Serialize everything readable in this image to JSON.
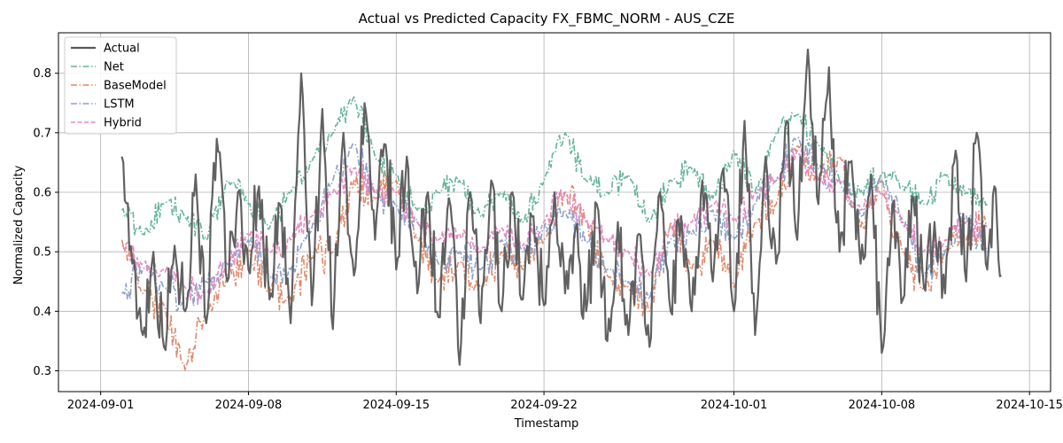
{
  "chart_data": {
    "type": "line",
    "title": "Actual vs Predicted Capacity FX_FBMC_NORM - AUS_CZE",
    "xlabel": "Timestamp",
    "ylabel": "Normalized Capacity",
    "xlim": [
      "2024-08-30",
      "2024-10-16"
    ],
    "ylim": [
      0.265,
      0.868
    ],
    "x_ticks": [
      "2024-09-01",
      "2024-09-08",
      "2024-09-15",
      "2024-09-22",
      "2024-10-01",
      "2024-10-08",
      "2024-10-15"
    ],
    "y_ticks": [
      0.3,
      0.4,
      0.5,
      0.6,
      0.7,
      0.8
    ],
    "grid": true,
    "legend_position": "top-left",
    "x_start": "2024-09-02",
    "x_end": "2024-10-13",
    "series": [
      {
        "name": "Actual",
        "color": "#595959",
        "style": "solid",
        "points": [
          [
            "2024-09-02",
            0.66
          ],
          [
            "2024-09-02",
            0.48
          ],
          [
            "2024-09-03",
            0.36
          ],
          [
            "2024-09-03",
            0.5
          ],
          [
            "2024-09-04",
            0.34
          ],
          [
            "2024-09-04",
            0.51
          ],
          [
            "2024-09-05",
            0.4
          ],
          [
            "2024-09-05",
            0.63
          ],
          [
            "2024-09-06",
            0.38
          ],
          [
            "2024-09-06",
            0.69
          ],
          [
            "2024-09-07",
            0.45
          ],
          [
            "2024-09-07",
            0.6
          ],
          [
            "2024-09-08",
            0.47
          ],
          [
            "2024-09-08",
            0.61
          ],
          [
            "2024-09-09",
            0.42
          ],
          [
            "2024-09-09",
            0.58
          ],
          [
            "2024-09-10",
            0.38
          ],
          [
            "2024-09-10",
            0.8
          ],
          [
            "2024-09-11",
            0.41
          ],
          [
            "2024-09-11",
            0.74
          ],
          [
            "2024-09-12",
            0.37
          ],
          [
            "2024-09-12",
            0.7
          ],
          [
            "2024-09-13",
            0.46
          ],
          [
            "2024-09-13",
            0.75
          ],
          [
            "2024-09-14",
            0.52
          ],
          [
            "2024-09-14",
            0.68
          ],
          [
            "2024-09-15",
            0.47
          ],
          [
            "2024-09-15",
            0.66
          ],
          [
            "2024-09-16",
            0.43
          ],
          [
            "2024-09-16",
            0.6
          ],
          [
            "2024-09-17",
            0.39
          ],
          [
            "2024-09-17",
            0.59
          ],
          [
            "2024-09-18",
            0.31
          ],
          [
            "2024-09-18",
            0.6
          ],
          [
            "2024-09-19",
            0.38
          ],
          [
            "2024-09-19",
            0.62
          ],
          [
            "2024-09-20",
            0.4
          ],
          [
            "2024-09-20",
            0.6
          ],
          [
            "2024-09-21",
            0.42
          ],
          [
            "2024-09-21",
            0.56
          ],
          [
            "2024-09-22",
            0.41
          ],
          [
            "2024-09-22",
            0.6
          ],
          [
            "2024-09-23",
            0.43
          ],
          [
            "2024-09-23",
            0.54
          ],
          [
            "2024-09-24",
            0.4
          ],
          [
            "2024-09-24",
            0.58
          ],
          [
            "2024-09-25",
            0.35
          ],
          [
            "2024-09-25",
            0.55
          ],
          [
            "2024-09-26",
            0.36
          ],
          [
            "2024-09-26",
            0.53
          ],
          [
            "2024-09-27",
            0.34
          ],
          [
            "2024-09-27",
            0.6
          ],
          [
            "2024-09-28",
            0.4
          ],
          [
            "2024-09-28",
            0.56
          ],
          [
            "2024-09-29",
            0.4
          ],
          [
            "2024-09-29",
            0.62
          ],
          [
            "2024-09-30",
            0.45
          ],
          [
            "2024-09-30",
            0.64
          ],
          [
            "2024-10-01",
            0.4
          ],
          [
            "2024-10-01",
            0.72
          ],
          [
            "2024-10-02",
            0.36
          ],
          [
            "2024-10-02",
            0.66
          ],
          [
            "2024-10-03",
            0.48
          ],
          [
            "2024-10-03",
            0.72
          ],
          [
            "2024-10-04",
            0.52
          ],
          [
            "2024-10-04",
            0.84
          ],
          [
            "2024-10-05",
            0.58
          ],
          [
            "2024-10-05",
            0.81
          ],
          [
            "2024-10-06",
            0.5
          ],
          [
            "2024-10-06",
            0.65
          ],
          [
            "2024-10-07",
            0.48
          ],
          [
            "2024-10-07",
            0.63
          ],
          [
            "2024-10-08",
            0.33
          ],
          [
            "2024-10-08",
            0.58
          ],
          [
            "2024-10-09",
            0.42
          ],
          [
            "2024-10-09",
            0.59
          ],
          [
            "2024-10-10",
            0.44
          ],
          [
            "2024-10-10",
            0.55
          ],
          [
            "2024-10-11",
            0.43
          ],
          [
            "2024-10-11",
            0.67
          ],
          [
            "2024-10-12",
            0.45
          ],
          [
            "2024-10-12",
            0.7
          ],
          [
            "2024-10-13",
            0.47
          ],
          [
            "2024-10-13",
            0.61
          ],
          [
            "2024-10-13",
            0.46
          ]
        ]
      },
      {
        "name": "Net",
        "color": "#66b39a",
        "style": "dashdot",
        "points": [
          [
            "2024-09-02",
            0.57
          ],
          [
            "2024-09-03",
            0.53
          ],
          [
            "2024-09-04",
            0.58
          ],
          [
            "2024-09-05",
            0.56
          ],
          [
            "2024-09-06",
            0.52
          ],
          [
            "2024-09-07",
            0.62
          ],
          [
            "2024-09-08",
            0.58
          ],
          [
            "2024-09-09",
            0.54
          ],
          [
            "2024-09-10",
            0.6
          ],
          [
            "2024-09-11",
            0.65
          ],
          [
            "2024-09-12",
            0.7
          ],
          [
            "2024-09-13",
            0.76
          ],
          [
            "2024-09-14",
            0.66
          ],
          [
            "2024-09-15",
            0.63
          ],
          [
            "2024-09-16",
            0.57
          ],
          [
            "2024-09-17",
            0.6
          ],
          [
            "2024-09-18",
            0.62
          ],
          [
            "2024-09-19",
            0.56
          ],
          [
            "2024-09-20",
            0.6
          ],
          [
            "2024-09-21",
            0.55
          ],
          [
            "2024-09-22",
            0.62
          ],
          [
            "2024-09-23",
            0.7
          ],
          [
            "2024-09-24",
            0.62
          ],
          [
            "2024-09-25",
            0.6
          ],
          [
            "2024-09-26",
            0.63
          ],
          [
            "2024-09-27",
            0.55
          ],
          [
            "2024-09-28",
            0.62
          ],
          [
            "2024-09-29",
            0.64
          ],
          [
            "2024-09-30",
            0.59
          ],
          [
            "2024-10-01",
            0.67
          ],
          [
            "2024-10-02",
            0.6
          ],
          [
            "2024-10-03",
            0.7
          ],
          [
            "2024-10-04",
            0.73
          ],
          [
            "2024-10-05",
            0.68
          ],
          [
            "2024-10-06",
            0.62
          ],
          [
            "2024-10-07",
            0.6
          ],
          [
            "2024-10-08",
            0.63
          ],
          [
            "2024-10-09",
            0.61
          ],
          [
            "2024-10-10",
            0.58
          ],
          [
            "2024-10-11",
            0.63
          ],
          [
            "2024-10-12",
            0.6
          ],
          [
            "2024-10-13",
            0.58
          ]
        ]
      },
      {
        "name": "BaseModel",
        "color": "#e0896a",
        "style": "dashdot",
        "points": [
          [
            "2024-09-02",
            0.52
          ],
          [
            "2024-09-03",
            0.43
          ],
          [
            "2024-09-04",
            0.41
          ],
          [
            "2024-09-05",
            0.3
          ],
          [
            "2024-09-06",
            0.4
          ],
          [
            "2024-09-07",
            0.46
          ],
          [
            "2024-09-08",
            0.5
          ],
          [
            "2024-09-09",
            0.44
          ],
          [
            "2024-09-10",
            0.42
          ],
          [
            "2024-09-11",
            0.49
          ],
          [
            "2024-09-12",
            0.5
          ],
          [
            "2024-09-13",
            0.62
          ],
          [
            "2024-09-14",
            0.59
          ],
          [
            "2024-09-15",
            0.62
          ],
          [
            "2024-09-16",
            0.52
          ],
          [
            "2024-09-17",
            0.45
          ],
          [
            "2024-09-18",
            0.48
          ],
          [
            "2024-09-19",
            0.44
          ],
          [
            "2024-09-20",
            0.5
          ],
          [
            "2024-09-21",
            0.47
          ],
          [
            "2024-09-22",
            0.52
          ],
          [
            "2024-09-23",
            0.6
          ],
          [
            "2024-09-24",
            0.55
          ],
          [
            "2024-09-25",
            0.46
          ],
          [
            "2024-09-26",
            0.44
          ],
          [
            "2024-09-27",
            0.4
          ],
          [
            "2024-09-28",
            0.55
          ],
          [
            "2024-09-29",
            0.47
          ],
          [
            "2024-09-30",
            0.52
          ],
          [
            "2024-10-01",
            0.44
          ],
          [
            "2024-10-02",
            0.55
          ],
          [
            "2024-10-03",
            0.58
          ],
          [
            "2024-10-04",
            0.68
          ],
          [
            "2024-10-05",
            0.62
          ],
          [
            "2024-10-06",
            0.66
          ],
          [
            "2024-10-07",
            0.54
          ],
          [
            "2024-10-08",
            0.62
          ],
          [
            "2024-10-09",
            0.5
          ],
          [
            "2024-10-10",
            0.44
          ],
          [
            "2024-10-11",
            0.5
          ],
          [
            "2024-10-12",
            0.52
          ],
          [
            "2024-10-13",
            0.55
          ]
        ]
      },
      {
        "name": "LSTM",
        "color": "#8da0cb",
        "style": "dashdot",
        "points": [
          [
            "2024-09-02",
            0.43
          ],
          [
            "2024-09-03",
            0.47
          ],
          [
            "2024-09-04",
            0.44
          ],
          [
            "2024-09-05",
            0.42
          ],
          [
            "2024-09-06",
            0.45
          ],
          [
            "2024-09-07",
            0.48
          ],
          [
            "2024-09-08",
            0.52
          ],
          [
            "2024-09-09",
            0.46
          ],
          [
            "2024-09-10",
            0.47
          ],
          [
            "2024-09-11",
            0.54
          ],
          [
            "2024-09-12",
            0.62
          ],
          [
            "2024-09-13",
            0.68
          ],
          [
            "2024-09-14",
            0.6
          ],
          [
            "2024-09-15",
            0.58
          ],
          [
            "2024-09-16",
            0.55
          ],
          [
            "2024-09-17",
            0.48
          ],
          [
            "2024-09-18",
            0.5
          ],
          [
            "2024-09-19",
            0.47
          ],
          [
            "2024-09-20",
            0.52
          ],
          [
            "2024-09-21",
            0.5
          ],
          [
            "2024-09-22",
            0.54
          ],
          [
            "2024-09-23",
            0.57
          ],
          [
            "2024-09-24",
            0.52
          ],
          [
            "2024-09-25",
            0.47
          ],
          [
            "2024-09-26",
            0.45
          ],
          [
            "2024-09-27",
            0.42
          ],
          [
            "2024-09-28",
            0.52
          ],
          [
            "2024-09-29",
            0.53
          ],
          [
            "2024-09-30",
            0.57
          ],
          [
            "2024-10-01",
            0.52
          ],
          [
            "2024-10-02",
            0.58
          ],
          [
            "2024-10-03",
            0.62
          ],
          [
            "2024-10-04",
            0.69
          ],
          [
            "2024-10-05",
            0.64
          ],
          [
            "2024-10-06",
            0.62
          ],
          [
            "2024-10-07",
            0.56
          ],
          [
            "2024-10-08",
            0.62
          ],
          [
            "2024-10-09",
            0.55
          ],
          [
            "2024-10-10",
            0.46
          ],
          [
            "2024-10-11",
            0.5
          ],
          [
            "2024-10-12",
            0.56
          ],
          [
            "2024-10-13",
            0.5
          ]
        ]
      },
      {
        "name": "Hybrid",
        "color": "#e78ac3",
        "style": "dashed",
        "points": [
          [
            "2024-09-02",
            0.51
          ],
          [
            "2024-09-03",
            0.48
          ],
          [
            "2024-09-04",
            0.47
          ],
          [
            "2024-09-05",
            0.44
          ],
          [
            "2024-09-06",
            0.43
          ],
          [
            "2024-09-07",
            0.48
          ],
          [
            "2024-09-08",
            0.53
          ],
          [
            "2024-09-09",
            0.5
          ],
          [
            "2024-09-10",
            0.52
          ],
          [
            "2024-09-11",
            0.56
          ],
          [
            "2024-09-12",
            0.6
          ],
          [
            "2024-09-13",
            0.64
          ],
          [
            "2024-09-14",
            0.6
          ],
          [
            "2024-09-15",
            0.6
          ],
          [
            "2024-09-16",
            0.55
          ],
          [
            "2024-09-17",
            0.52
          ],
          [
            "2024-09-18",
            0.53
          ],
          [
            "2024-09-19",
            0.5
          ],
          [
            "2024-09-20",
            0.54
          ],
          [
            "2024-09-21",
            0.51
          ],
          [
            "2024-09-22",
            0.55
          ],
          [
            "2024-09-23",
            0.6
          ],
          [
            "2024-09-24",
            0.55
          ],
          [
            "2024-09-25",
            0.52
          ],
          [
            "2024-09-26",
            0.5
          ],
          [
            "2024-09-27",
            0.46
          ],
          [
            "2024-09-28",
            0.54
          ],
          [
            "2024-09-29",
            0.55
          ],
          [
            "2024-09-30",
            0.58
          ],
          [
            "2024-10-01",
            0.55
          ],
          [
            "2024-10-02",
            0.6
          ],
          [
            "2024-10-03",
            0.62
          ],
          [
            "2024-10-04",
            0.67
          ],
          [
            "2024-10-05",
            0.62
          ],
          [
            "2024-10-06",
            0.62
          ],
          [
            "2024-10-07",
            0.57
          ],
          [
            "2024-10-08",
            0.6
          ],
          [
            "2024-10-09",
            0.55
          ],
          [
            "2024-10-10",
            0.5
          ],
          [
            "2024-10-11",
            0.52
          ],
          [
            "2024-10-12",
            0.55
          ],
          [
            "2024-10-13",
            0.54
          ]
        ]
      }
    ]
  }
}
